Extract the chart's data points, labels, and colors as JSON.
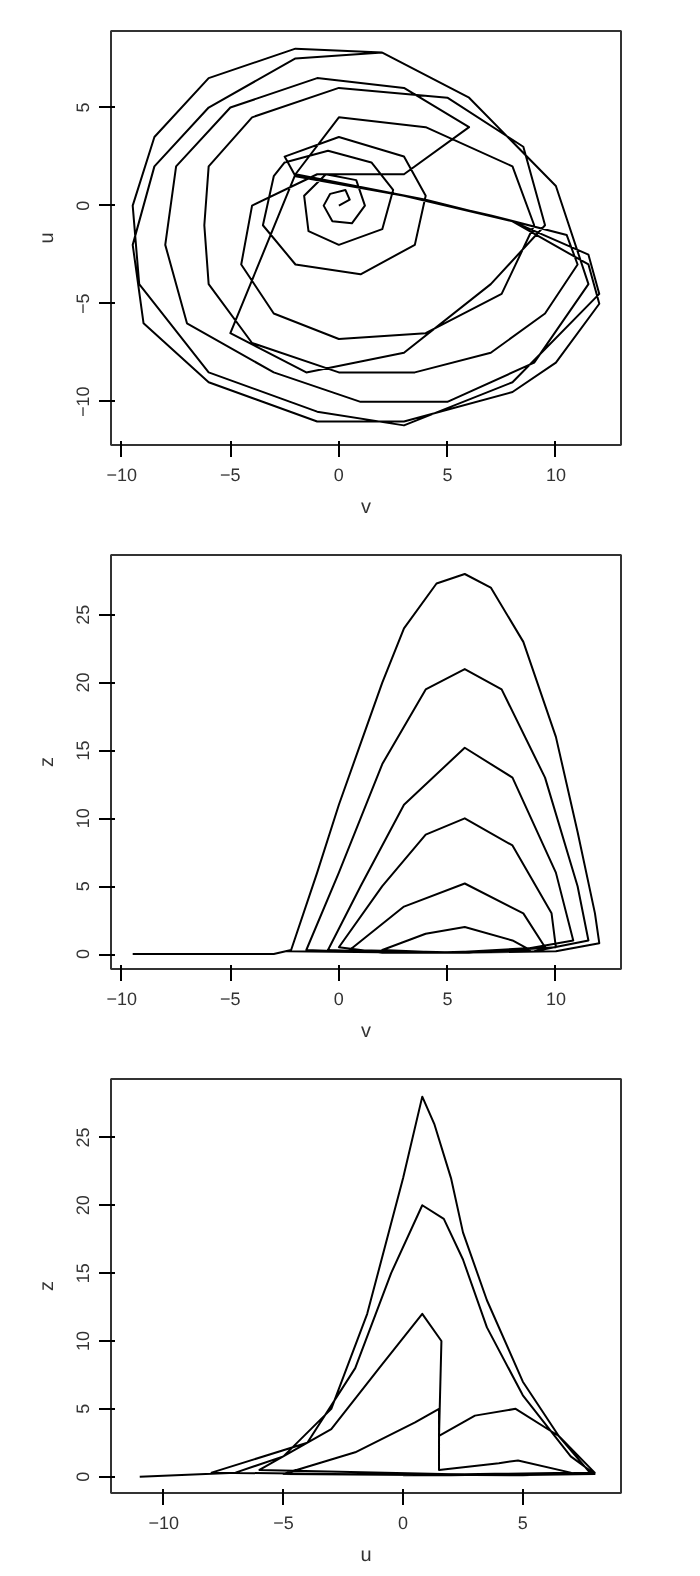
{
  "chart_data": [
    {
      "type": "line",
      "xlabel": "v",
      "ylabel": "u",
      "xlim": [
        -10.5,
        13
      ],
      "ylim": [
        -12.2,
        8.9
      ],
      "xticks": [
        -10,
        -5,
        0,
        5,
        10
      ],
      "yticks": [
        -10,
        -5,
        0,
        5
      ],
      "grid": false,
      "series": [
        {
          "color": "#000000",
          "x": [
            0,
            0.5,
            0.3,
            -0.4,
            -0.7,
            -0.3,
            0.6,
            1.2,
            0.8,
            -0.6,
            -1.6,
            -1.4,
            0,
            2,
            2.5,
            1.5,
            -0.5,
            -2.5,
            -3,
            -3.5,
            -2,
            1,
            3.5,
            4,
            3,
            0,
            -2.5,
            -2,
            3,
            7,
            10.5,
            11,
            9.5,
            7,
            3.5,
            0,
            -4,
            -6,
            -6.2,
            -6,
            -4,
            0,
            5,
            8.5,
            9.5,
            7,
            3,
            -1.5,
            -5,
            -2,
            4,
            8,
            11.5,
            12,
            10,
            8,
            3,
            -1,
            -6,
            -9,
            -9.5,
            -8.5,
            -6,
            -2,
            2,
            6,
            10,
            11.5,
            9,
            5,
            1,
            -3,
            -7,
            -8,
            -7.5,
            -5,
            -1,
            3,
            6,
            3,
            -1,
            -4,
            -4.5,
            -3,
            0,
            4,
            7.5,
            9,
            8,
            4,
            0,
            -2,
            3,
            8,
            11.5,
            12,
            8,
            3,
            -1,
            -6,
            -9.2,
            -9.5,
            -8.5,
            -6,
            -2,
            2
          ],
          "values": [
            0,
            0.3,
            0.8,
            0.6,
            0,
            -0.8,
            -0.9,
            0,
            1.3,
            1.6,
            0.5,
            -1.3,
            -2,
            -1.2,
            0.8,
            2.2,
            2.8,
            2.2,
            1.5,
            -1,
            -3,
            -3.5,
            -2,
            0.5,
            2.5,
            3.5,
            2.5,
            1.5,
            0.5,
            -0.5,
            -1.5,
            -3,
            -5.5,
            -7.5,
            -8.5,
            -8.5,
            -7,
            -4,
            -1,
            2,
            4.5,
            6,
            5.5,
            3,
            -1,
            -4,
            -7.5,
            -8.5,
            -6.5,
            1.6,
            0.3,
            -0.8,
            -3,
            -5,
            -8,
            -9.5,
            -11,
            -11,
            -9,
            -6,
            -2,
            2,
            5,
            7.5,
            7.8,
            5.5,
            1,
            -4,
            -8,
            -10,
            -10,
            -8.5,
            -6,
            -2,
            2,
            5,
            6.5,
            6,
            4,
            1.6,
            1.6,
            0,
            -3,
            -5.5,
            -6.8,
            -6.5,
            -4.5,
            -1,
            2,
            4,
            4.5,
            1.6,
            0.5,
            -0.8,
            -2.5,
            -4.5,
            -9,
            -11.2,
            -10.5,
            -8.5,
            -4,
            0,
            3.5,
            6.5,
            8,
            7.8
          ]
        }
      ]
    },
    {
      "type": "line",
      "xlabel": "v",
      "ylabel": "z",
      "xlim": [
        -10.5,
        13
      ],
      "ylim": [
        -1.1,
        29.4
      ],
      "xticks": [
        -10,
        -5,
        0,
        5,
        10
      ],
      "yticks": [
        0,
        5,
        10,
        15,
        20,
        25
      ],
      "grid": false,
      "series": [
        {
          "color": "#000000",
          "x": [
            -9.5,
            -3,
            -2.2,
            -1,
            0,
            1,
            2,
            3,
            4.5,
            5.8,
            7,
            8.5,
            10,
            11,
            11.8,
            12,
            10,
            5,
            0,
            -1.5,
            0,
            2,
            4,
            5.8,
            7.5,
            9.5,
            11,
            11.5,
            9,
            3,
            -0.5,
            1,
            3,
            5.8,
            8,
            10,
            10.8,
            8,
            2,
            0,
            2,
            4,
            5.8,
            8,
            9.8,
            10,
            6,
            0.5,
            3,
            5.8,
            8.5,
            9.5,
            5,
            2,
            4,
            5.8,
            8,
            8.8,
            4,
            -2.4
          ],
          "values": [
            0,
            0,
            0.3,
            6,
            11,
            15.5,
            20,
            24,
            27.3,
            28,
            27,
            23,
            16,
            9,
            3,
            0.8,
            0.2,
            0.1,
            0.2,
            0.3,
            6,
            14,
            19.5,
            21,
            19.5,
            13,
            5,
            1,
            0.2,
            0.1,
            0.3,
            5,
            11,
            15.2,
            13,
            6,
            1,
            0.2,
            0.1,
            0.5,
            5,
            8.8,
            10,
            8,
            3,
            0.5,
            0.1,
            0.3,
            3.5,
            5.2,
            3,
            0.5,
            0.1,
            0.3,
            1.5,
            2,
            1,
            0.3,
            0.1,
            0.2
          ]
        }
      ]
    },
    {
      "type": "line",
      "xlabel": "u",
      "ylabel": "z",
      "xlim": [
        -12.2,
        9.1
      ],
      "ylim": [
        -1.2,
        29.3
      ],
      "xticks": [
        -10,
        -5,
        0,
        5
      ],
      "yticks": [
        0,
        5,
        10,
        15,
        20,
        25
      ],
      "grid": false,
      "series": [
        {
          "color": "#000000",
          "x": [
            -11,
            -7,
            -5,
            -3,
            -1.5,
            0,
            0.8,
            1.3,
            2,
            2.5,
            3.5,
            5,
            6.5,
            8,
            5,
            -3,
            -8,
            -4,
            -2,
            -0.5,
            0.8,
            1.7,
            2.5,
            3.5,
            5,
            7,
            8,
            4,
            -6,
            -3,
            -1,
            0.8,
            1.6,
            1.5,
            3,
            4.7,
            6.5,
            7.8,
            2,
            -5,
            -2,
            0.5,
            1.5,
            1.5,
            4,
            4.8,
            7,
            0
          ],
          "values": [
            0,
            0.3,
            1.5,
            5,
            12,
            22,
            28,
            26,
            22,
            18,
            13,
            7,
            3,
            0.3,
            0.1,
            0.2,
            0.3,
            2.5,
            8,
            15,
            20,
            19,
            16,
            11,
            6,
            1.5,
            0.2,
            0.1,
            0.5,
            3.5,
            8,
            12,
            10,
            3,
            4.5,
            5,
            3,
            0.3,
            0.1,
            0.2,
            1.8,
            4,
            5,
            0.5,
            1,
            1.2,
            0.3,
            0.1
          ]
        }
      ]
    }
  ]
}
